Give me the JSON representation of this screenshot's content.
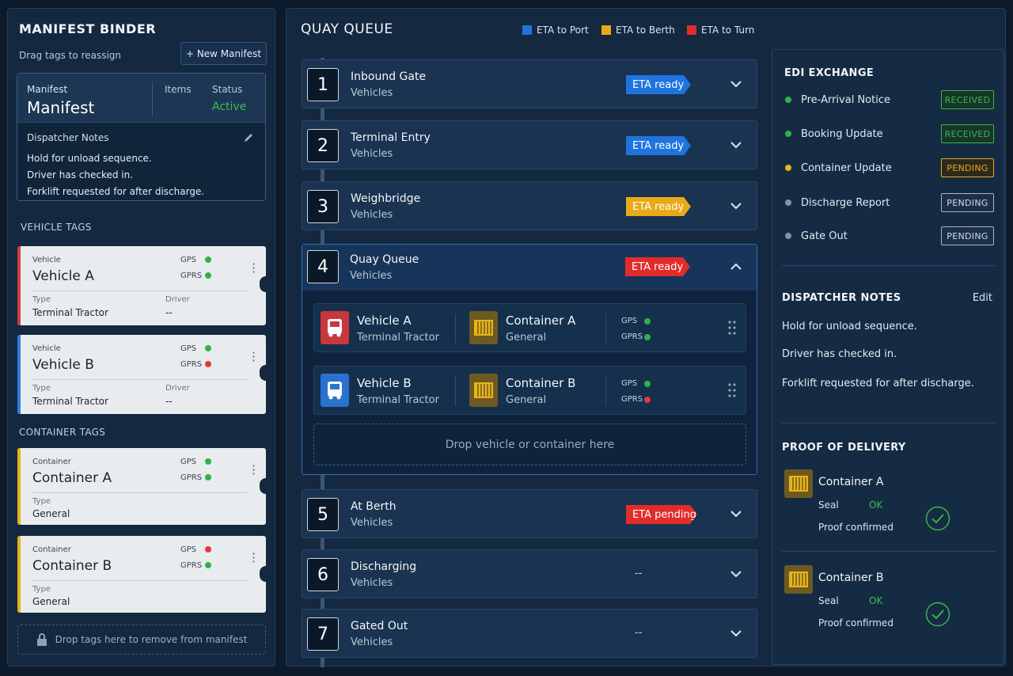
{
  "left": {
    "title": "MANIFEST BINDER",
    "subtitle": "Drag tags to reassign",
    "new_button": "+ New Manifest",
    "manifest": {
      "label": "Manifest",
      "name": "Manifest",
      "items_label": "Items",
      "status_label": "Status",
      "status_value": "Active",
      "notes_title": "Dispatcher Notes",
      "notes": [
        "Hold for unload sequence.",
        "Driver has checked in.",
        "Forklift requested for after discharge."
      ]
    },
    "vehicle_tags_title": "VEHICLE TAGS",
    "container_tags_title": "CONTAINER TAGS",
    "vehicles": [
      {
        "kind": "Vehicle",
        "name": "Vehicle A",
        "type_label": "Type",
        "type": "Terminal Tractor",
        "driver_label": "Driver",
        "driver": "--",
        "gps": "GPS",
        "gprs": "GPRS",
        "gps_status": "green",
        "gprs_status": "green",
        "stripe": "#d63a3a"
      },
      {
        "kind": "Vehicle",
        "name": "Vehicle B",
        "type_label": "Type",
        "type": "Terminal Tractor",
        "driver_label": "Driver",
        "driver": "--",
        "gps": "GPS",
        "gprs": "GPRS",
        "gps_status": "green",
        "gprs_status": "red",
        "stripe": "#2f7fe0"
      }
    ],
    "containers": [
      {
        "kind": "Container",
        "name": "Container A",
        "type_label": "Type",
        "type": "General",
        "gps": "GPS",
        "gprs": "GPRS",
        "gps_status": "green",
        "gprs_status": "green",
        "stripe": "#e6b417"
      },
      {
        "kind": "Container",
        "name": "Container B",
        "type_label": "Type",
        "type": "General",
        "gps": "GPS",
        "gprs": "GPRS",
        "gps_status": "red",
        "gprs_status": "green",
        "stripe": "#e6b417"
      }
    ],
    "drop_remove": "Drop tags here to remove from manifest"
  },
  "center": {
    "title": "QUAY QUEUE",
    "legend": [
      {
        "label": "ETA to Port",
        "color": "#1f74e0"
      },
      {
        "label": "ETA to Berth",
        "color": "#e9a91a"
      },
      {
        "label": "ETA to Turn",
        "color": "#e22b2b"
      }
    ],
    "stages": [
      {
        "num": "1",
        "name": "Inbound Gate",
        "sub": "Vehicles",
        "eta": "ETA ready",
        "eta_color": "#1f74e0"
      },
      {
        "num": "2",
        "name": "Terminal Entry",
        "sub": "Vehicles",
        "eta": "ETA ready",
        "eta_color": "#1f74e0"
      },
      {
        "num": "3",
        "name": "Weighbridge",
        "sub": "Vehicles",
        "eta": "ETA ready",
        "eta_color": "#e9a91a"
      },
      {
        "num": "4",
        "name": "Quay Queue",
        "sub": "Vehicles",
        "eta": "ETA ready",
        "eta_color": "#e22b2b"
      },
      {
        "num": "5",
        "name": "At Berth",
        "sub": "Vehicles",
        "eta": "ETA pending",
        "eta_color": "#e22b2b"
      },
      {
        "num": "6",
        "name": "Discharging",
        "sub": "Vehicles",
        "eta": "--"
      },
      {
        "num": "7",
        "name": "Gated Out",
        "sub": "Vehicles",
        "eta": "--"
      }
    ],
    "assignments": [
      {
        "vehicle": "Vehicle A",
        "vehicle_type": "Terminal Tractor",
        "vehicle_color": "#c8373b",
        "container": "Container A",
        "container_type": "General",
        "gps": "GPS",
        "gprs": "GPRS",
        "gps_status": "green",
        "gprs_status": "green"
      },
      {
        "vehicle": "Vehicle B",
        "vehicle_type": "Terminal Tractor",
        "vehicle_color": "#2a72cf",
        "container": "Container B",
        "container_type": "General",
        "gps": "GPS",
        "gprs": "GPRS",
        "gps_status": "green",
        "gprs_status": "red"
      }
    ],
    "drop_zone": "Drop vehicle or container here"
  },
  "right": {
    "edi_title": "EDI EXCHANGE",
    "edi": [
      {
        "label": "Pre-Arrival Notice",
        "status": "RECEIVED",
        "dot": "green",
        "color": "#39b54a"
      },
      {
        "label": "Booking Update",
        "status": "RECEIVED",
        "dot": "green",
        "color": "#39b54a"
      },
      {
        "label": "Container Update",
        "status": "PENDING",
        "dot": "yellow",
        "color": "#e9a91a"
      },
      {
        "label": "Discharge Report",
        "status": "PENDING",
        "dot": "gray",
        "color": "#aab6c3"
      },
      {
        "label": "Gate Out",
        "status": "PENDING",
        "dot": "gray",
        "color": "#aab6c3"
      }
    ],
    "notes_title": "DISPATCHER NOTES",
    "notes_edit": "Edit",
    "notes": [
      "Hold for unload sequence.",
      "Driver has checked in.",
      "Forklift requested for after discharge."
    ],
    "pod_title": "PROOF OF DELIVERY",
    "pod": [
      {
        "name": "Container A",
        "seal_label": "Seal",
        "seal_value": "OK",
        "proof": "Proof confirmed"
      },
      {
        "name": "Container B",
        "seal_label": "Seal",
        "seal_value": "OK",
        "proof": "Proof confirmed"
      }
    ]
  }
}
